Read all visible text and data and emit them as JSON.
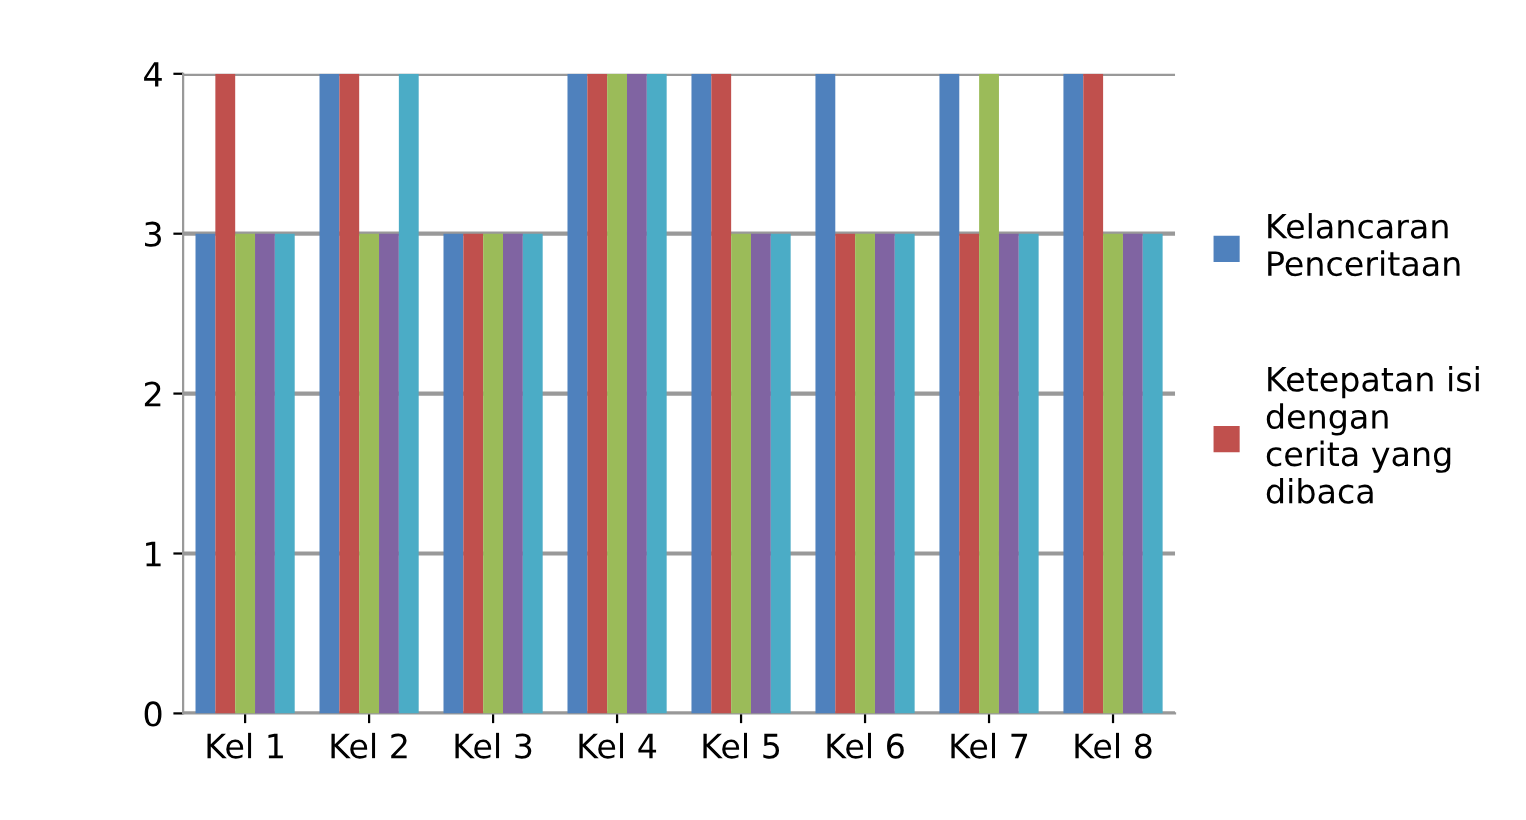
{
  "chart_data": {
    "type": "bar",
    "categories": [
      "Kel 1",
      "Kel 2",
      "Kel 3",
      "Kel 4",
      "Kel 5",
      "Kel 6",
      "Kel 7",
      "Kel 8"
    ],
    "series": [
      {
        "name": "Kelancaran\nPenceritaan",
        "color": "#4f81bd",
        "values": [
          3,
          4,
          3,
          4,
          4,
          4,
          4,
          4
        ]
      },
      {
        "name": "Ketepatan isi\ndengan\ncerita yang\ndibaca",
        "color": "#c0504d",
        "values": [
          4,
          4,
          3,
          4,
          4,
          3,
          3,
          4
        ]
      },
      {
        "color": "#9bbb59",
        "values": [
          3,
          3,
          3,
          4,
          3,
          3,
          4,
          3
        ]
      },
      {
        "color": "#8064a2",
        "values": [
          3,
          3,
          3,
          4,
          3,
          3,
          3,
          3
        ]
      },
      {
        "color": "#4bacc6",
        "values": [
          3,
          4,
          3,
          4,
          3,
          3,
          3,
          3
        ]
      }
    ],
    "ylim": [
      0,
      4
    ],
    "yticks": [
      0,
      1,
      2,
      3,
      4
    ],
    "grid": "y",
    "legend": "right"
  }
}
